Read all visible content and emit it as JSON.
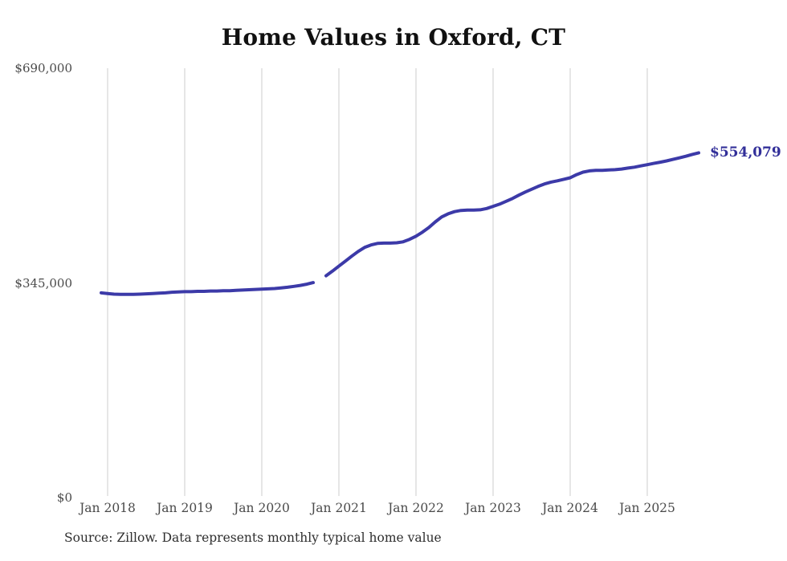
{
  "source_note": "Source: Zillow. Data represents monthly typical home value",
  "colors": {
    "line": "#3c3aa8",
    "end_label_text": "#322f99",
    "grid": "#cccccc",
    "title_text": "#111111",
    "tick_text": "#4a4a4a",
    "source_text": "#2e2e2e",
    "background": "#ffffff"
  },
  "chart_data": {
    "type": "line",
    "title": "Home Values in Oxford, CT",
    "xlabel": "",
    "ylabel": "",
    "ylim": [
      0,
      690000
    ],
    "grid": "vertical yearly gridlines only",
    "legend_position": "none",
    "y_ticks": [
      {
        "label": "$0",
        "value": 0
      },
      {
        "label": "$345,000",
        "value": 345000
      },
      {
        "label": "$690,000",
        "value": 690000
      }
    ],
    "x_ticks": [
      {
        "label": "Jan 2018",
        "date": "2018-01"
      },
      {
        "label": "Jan 2019",
        "date": "2019-01"
      },
      {
        "label": "Jan 2020",
        "date": "2020-01"
      },
      {
        "label": "Jan 2021",
        "date": "2021-01"
      },
      {
        "label": "Jan 2022",
        "date": "2022-01"
      },
      {
        "label": "Jan 2023",
        "date": "2023-01"
      },
      {
        "label": "Jan 2024",
        "date": "2024-01"
      },
      {
        "label": "Jan 2025",
        "date": "2025-01"
      }
    ],
    "series": [
      {
        "name": "Monthly typical home value",
        "end_label": "$554,079",
        "end_value": 554079,
        "note": "gap in data at 2020-10",
        "points": [
          [
            "2017-12",
            329000
          ],
          [
            "2018-01",
            328000
          ],
          [
            "2018-02",
            327000
          ],
          [
            "2018-03",
            326500
          ],
          [
            "2018-04",
            326500
          ],
          [
            "2018-05",
            326500
          ],
          [
            "2018-06",
            327000
          ],
          [
            "2018-07",
            327500
          ],
          [
            "2018-08",
            328000
          ],
          [
            "2018-09",
            328500
          ],
          [
            "2018-10",
            329000
          ],
          [
            "2018-11",
            330000
          ],
          [
            "2018-12",
            330500
          ],
          [
            "2019-01",
            331000
          ],
          [
            "2019-02",
            331000
          ],
          [
            "2019-03",
            331500
          ],
          [
            "2019-04",
            331500
          ],
          [
            "2019-05",
            332000
          ],
          [
            "2019-06",
            332000
          ],
          [
            "2019-07",
            332500
          ],
          [
            "2019-08",
            332500
          ],
          [
            "2019-09",
            333000
          ],
          [
            "2019-10",
            333500
          ],
          [
            "2019-11",
            334000
          ],
          [
            "2019-12",
            334500
          ],
          [
            "2020-01",
            335000
          ],
          [
            "2020-02",
            335500
          ],
          [
            "2020-03",
            336000
          ],
          [
            "2020-04",
            337000
          ],
          [
            "2020-05",
            338000
          ],
          [
            "2020-06",
            339500
          ],
          [
            "2020-07",
            341000
          ],
          [
            "2020-08",
            343000
          ],
          [
            "2020-09",
            345500
          ],
          [
            "2020-10",
            null
          ],
          [
            "2020-11",
            356500
          ],
          [
            "2020-12",
            364000
          ],
          [
            "2021-01",
            372000
          ],
          [
            "2021-02",
            380000
          ],
          [
            "2021-03",
            388000
          ],
          [
            "2021-04",
            395500
          ],
          [
            "2021-05",
            402000
          ],
          [
            "2021-06",
            406000
          ],
          [
            "2021-07",
            408500
          ],
          [
            "2021-08",
            409000
          ],
          [
            "2021-09",
            409000
          ],
          [
            "2021-10",
            409500
          ],
          [
            "2021-11",
            411000
          ],
          [
            "2021-12",
            415000
          ],
          [
            "2022-01",
            420000
          ],
          [
            "2022-02",
            426500
          ],
          [
            "2022-03",
            434000
          ],
          [
            "2022-04",
            443000
          ],
          [
            "2022-05",
            451000
          ],
          [
            "2022-06",
            456000
          ],
          [
            "2022-07",
            459500
          ],
          [
            "2022-08",
            461500
          ],
          [
            "2022-09",
            462000
          ],
          [
            "2022-10",
            462000
          ],
          [
            "2022-11",
            462500
          ],
          [
            "2022-12",
            464500
          ],
          [
            "2023-01",
            468000
          ],
          [
            "2023-02",
            471500
          ],
          [
            "2023-03",
            476000
          ],
          [
            "2023-04",
            480500
          ],
          [
            "2023-05",
            486000
          ],
          [
            "2023-06",
            491000
          ],
          [
            "2023-07",
            495500
          ],
          [
            "2023-08",
            500000
          ],
          [
            "2023-09",
            504000
          ],
          [
            "2023-10",
            507000
          ],
          [
            "2023-11",
            509000
          ],
          [
            "2023-12",
            511500
          ],
          [
            "2024-01",
            514000
          ],
          [
            "2024-02",
            519000
          ],
          [
            "2024-03",
            523000
          ],
          [
            "2024-04",
            525000
          ],
          [
            "2024-05",
            526000
          ],
          [
            "2024-06",
            526000
          ],
          [
            "2024-07",
            526500
          ],
          [
            "2024-08",
            527000
          ],
          [
            "2024-09",
            528000
          ],
          [
            "2024-10",
            529500
          ],
          [
            "2024-11",
            531000
          ],
          [
            "2024-12",
            533000
          ],
          [
            "2025-01",
            535000
          ],
          [
            "2025-02",
            537000
          ],
          [
            "2025-03",
            539000
          ],
          [
            "2025-04",
            541000
          ],
          [
            "2025-05",
            543500
          ],
          [
            "2025-06",
            546000
          ],
          [
            "2025-07",
            548500
          ],
          [
            "2025-08",
            551500
          ],
          [
            "2025-09",
            554079
          ]
        ]
      }
    ]
  }
}
